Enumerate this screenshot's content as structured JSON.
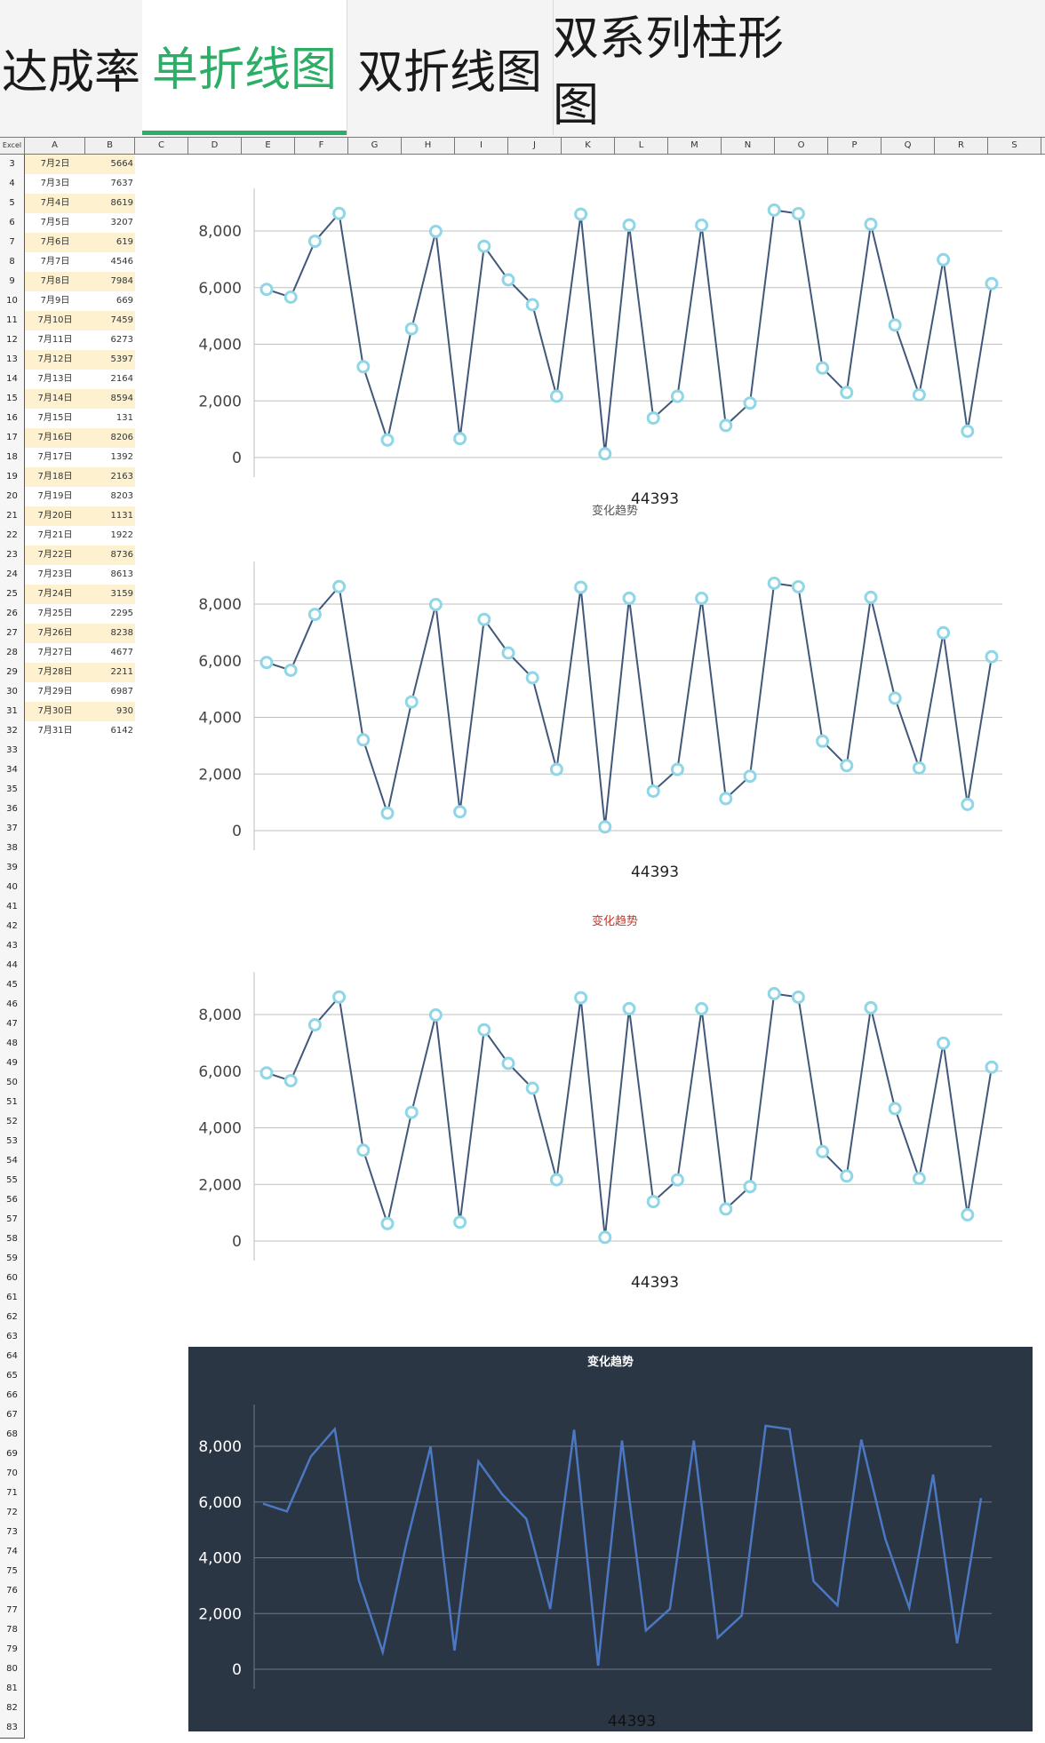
{
  "tabs": [
    {
      "label": "达成率"
    },
    {
      "label": "单折线图"
    },
    {
      "label": "双折线图"
    },
    {
      "label": "双系列柱形图"
    }
  ],
  "active_tab": "单折线图",
  "sheet": {
    "corner_label": "Excel",
    "columns": [
      "A",
      "B",
      "C",
      "D",
      "E",
      "F",
      "G",
      "H",
      "I",
      "J",
      "K",
      "L",
      "M",
      "N",
      "O",
      "P",
      "Q",
      "R",
      "S"
    ],
    "row_numbers": [
      3,
      4,
      5,
      6,
      7,
      8,
      9,
      10,
      11,
      12,
      13,
      14,
      15,
      16,
      17,
      18,
      19,
      20,
      21,
      22,
      23,
      24,
      25,
      26,
      27,
      28,
      29,
      30,
      31,
      32,
      33,
      34,
      35,
      36,
      37,
      38,
      39,
      40,
      41,
      42,
      43,
      44,
      45,
      46,
      47,
      48,
      49,
      50,
      51,
      52,
      53,
      54,
      55,
      56,
      57,
      58,
      59,
      60,
      61,
      62,
      63,
      64,
      65,
      66,
      67,
      68,
      69,
      70,
      71,
      72,
      73,
      74,
      75,
      76,
      77,
      78,
      79,
      80,
      81,
      82,
      83
    ],
    "data_rows": [
      {
        "date": "7月2日",
        "value": "5664"
      },
      {
        "date": "7月3日",
        "value": "7637"
      },
      {
        "date": "7月4日",
        "value": "8619"
      },
      {
        "date": "7月5日",
        "value": "3207"
      },
      {
        "date": "7月6日",
        "value": "619"
      },
      {
        "date": "7月7日",
        "value": "4546"
      },
      {
        "date": "7月8日",
        "value": "7984"
      },
      {
        "date": "7月9日",
        "value": "669"
      },
      {
        "date": "7月10日",
        "value": "7459"
      },
      {
        "date": "7月11日",
        "value": "6273"
      },
      {
        "date": "7月12日",
        "value": "5397"
      },
      {
        "date": "7月13日",
        "value": "2164"
      },
      {
        "date": "7月14日",
        "value": "8594"
      },
      {
        "date": "7月15日",
        "value": "131"
      },
      {
        "date": "7月16日",
        "value": "8206"
      },
      {
        "date": "7月17日",
        "value": "1392"
      },
      {
        "date": "7月18日",
        "value": "2163"
      },
      {
        "date": "7月19日",
        "value": "8203"
      },
      {
        "date": "7月20日",
        "value": "1131"
      },
      {
        "date": "7月21日",
        "value": "1922"
      },
      {
        "date": "7月22日",
        "value": "8736"
      },
      {
        "date": "7月23日",
        "value": "8613"
      },
      {
        "date": "7月24日",
        "value": "3159"
      },
      {
        "date": "7月25日",
        "value": "2295"
      },
      {
        "date": "7月26日",
        "value": "8238"
      },
      {
        "date": "7月27日",
        "value": "4677"
      },
      {
        "date": "7月28日",
        "value": "2211"
      },
      {
        "date": "7月29日",
        "value": "6987"
      },
      {
        "date": "7月30日",
        "value": "930"
      },
      {
        "date": "7月31日",
        "value": "6142"
      }
    ],
    "highlight_color": "#fdf1cf"
  },
  "chart_data": [
    {
      "type": "line",
      "title": "",
      "xlabel": "44393",
      "ylabel": "",
      "ylim": [
        0,
        9000
      ],
      "yticks": [
        "0",
        "2,000",
        "4,000",
        "6,000",
        "8,000"
      ],
      "grid": true,
      "theme": "light",
      "values": [
        5940,
        5664,
        7637,
        8619,
        3207,
        619,
        4546,
        7984,
        669,
        7459,
        6273,
        5397,
        2164,
        8594,
        131,
        8206,
        1392,
        2163,
        8203,
        1131,
        1922,
        8736,
        8613,
        3159,
        2295,
        8238,
        4677,
        2211,
        6987,
        930,
        6142
      ]
    },
    {
      "type": "line",
      "title": "变化趋势",
      "title_color": "#555555",
      "xlabel": "44393",
      "ylabel": "",
      "ylim": [
        0,
        9000
      ],
      "yticks": [
        "0",
        "2,000",
        "4,000",
        "6,000",
        "8,000"
      ],
      "grid": true,
      "theme": "light",
      "values": [
        5940,
        5664,
        7637,
        8619,
        3207,
        619,
        4546,
        7984,
        669,
        7459,
        6273,
        5397,
        2164,
        8594,
        131,
        8206,
        1392,
        2163,
        8203,
        1131,
        1922,
        8736,
        8613,
        3159,
        2295,
        8238,
        4677,
        2211,
        6987,
        930,
        6142
      ]
    },
    {
      "type": "line",
      "title": "变化趋势",
      "title_color": "#c0392b",
      "xlabel": "44393",
      "ylabel": "",
      "ylim": [
        0,
        9000
      ],
      "yticks": [
        "0",
        "2,000",
        "4,000",
        "6,000",
        "8,000"
      ],
      "grid": true,
      "theme": "light",
      "values": [
        5940,
        5664,
        7637,
        8619,
        3207,
        619,
        4546,
        7984,
        669,
        7459,
        6273,
        5397,
        2164,
        8594,
        131,
        8206,
        1392,
        2163,
        8203,
        1131,
        1922,
        8736,
        8613,
        3159,
        2295,
        8238,
        4677,
        2211,
        6987,
        930,
        6142
      ]
    },
    {
      "type": "line",
      "title": "变化趋势",
      "title_color": "#ffffff",
      "xlabel": "44393",
      "ylabel": "",
      "ylim": [
        0,
        9000
      ],
      "yticks": [
        "0",
        "2,000",
        "4,000",
        "6,000",
        "8,000"
      ],
      "grid": true,
      "theme": "dark",
      "values": [
        5940,
        5664,
        7637,
        8619,
        3207,
        619,
        4546,
        7984,
        669,
        7459,
        6273,
        5397,
        2164,
        8594,
        131,
        8206,
        1392,
        2163,
        8203,
        1131,
        1922,
        8736,
        8613,
        3159,
        2295,
        8238,
        4677,
        2211,
        6987,
        930,
        6142
      ]
    }
  ],
  "colors": {
    "accent": "#2bae66",
    "line_light": "#41587a",
    "marker": "#8fd6e6",
    "line_dark": "#4a78c2",
    "dark_bg": "#2b3645"
  }
}
